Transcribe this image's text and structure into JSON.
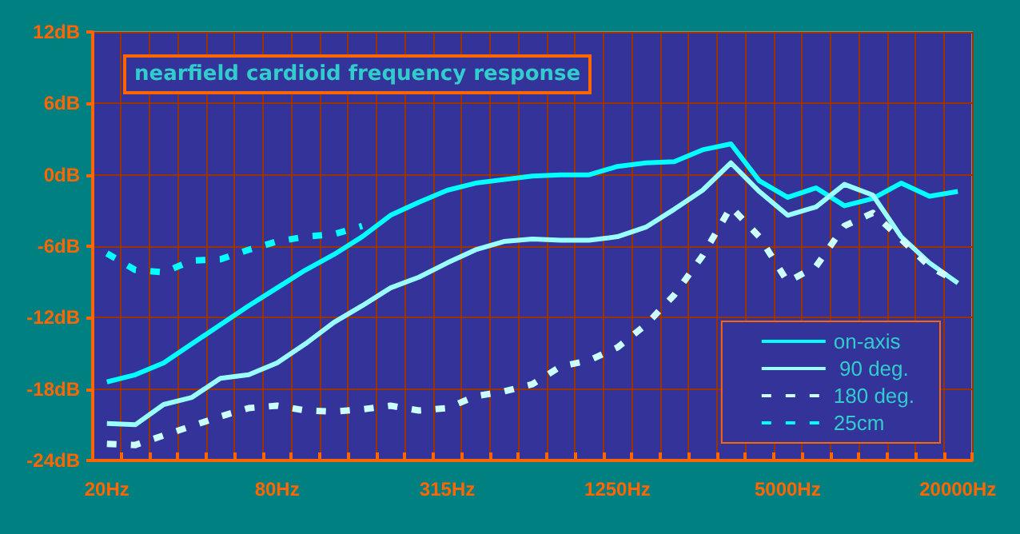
{
  "chart_data": {
    "type": "line",
    "title": "nearfield cardioid frequency response",
    "categories": [
      "20Hz",
      null,
      null,
      null,
      null,
      null,
      "80Hz",
      null,
      null,
      null,
      null,
      null,
      "315Hz",
      null,
      null,
      null,
      null,
      null,
      "1250Hz",
      null,
      null,
      null,
      null,
      null,
      "5000Hz",
      null,
      null,
      null,
      null,
      null,
      "20000Hz"
    ],
    "series": [
      {
        "name": "on-axis",
        "color": "#00ffff",
        "line_style": "solid",
        "values": [
          -17.4,
          -16.8,
          -15.8,
          -14.2,
          -12.6,
          -11.0,
          -9.5,
          -8.0,
          -6.7,
          -5.2,
          -3.4,
          -2.3,
          -1.3,
          -0.7,
          -0.4,
          -0.1,
          0.0,
          0.0,
          0.7,
          1.0,
          1.1,
          2.1,
          2.6,
          -0.5,
          -1.9,
          -1.1,
          -2.6,
          -2.0,
          -0.7,
          -1.8,
          -1.4
        ]
      },
      {
        "name": " 90 deg.",
        "color": "#99ffff",
        "line_style": "solid",
        "values": [
          -20.9,
          -21.0,
          -19.3,
          -18.7,
          -17.1,
          -16.8,
          -15.8,
          -14.2,
          -12.4,
          -11.0,
          -9.5,
          -8.6,
          -7.4,
          -6.3,
          -5.6,
          -5.4,
          -5.5,
          -5.5,
          -5.2,
          -4.4,
          -2.9,
          -1.3,
          1.0,
          -1.4,
          -3.4,
          -2.7,
          -0.8,
          -1.7,
          -5.2,
          -7.4,
          -9.1
        ]
      },
      {
        "name": "180 deg.",
        "color": "#ccffff",
        "line_style": "dashed",
        "values": [
          -22.6,
          -22.7,
          -21.9,
          -21.1,
          -20.3,
          -19.6,
          -19.4,
          -19.8,
          -19.9,
          -19.7,
          -19.4,
          -19.8,
          -19.6,
          -18.6,
          -18.2,
          -17.6,
          -16.1,
          -15.6,
          -14.5,
          -12.6,
          -10.1,
          -6.8,
          -2.7,
          -5.2,
          -9.0,
          -7.7,
          -4.3,
          -3.2,
          -5.4,
          -7.7,
          -9.0
        ]
      },
      {
        "name": "25cm",
        "color": "#00ffff",
        "line_style": "dashed",
        "values": [
          -6.6,
          -8.0,
          -8.2,
          -7.2,
          -7.1,
          -6.3,
          -5.6,
          -5.2,
          -5.0,
          -4.3,
          null,
          null,
          null,
          null,
          null,
          null,
          null,
          null,
          null,
          null,
          null,
          null,
          null,
          null,
          null,
          null,
          null,
          null,
          null,
          null,
          null
        ]
      }
    ],
    "ylim": [
      -24,
      12
    ],
    "yticks": [
      {
        "value": -24,
        "label": "-24dB"
      },
      {
        "value": -18,
        "label": "-18dB"
      },
      {
        "value": -12,
        "label": "-12dB"
      },
      {
        "value": -6,
        "label": "-6dB"
      },
      {
        "value": 0,
        "label": "0dB"
      },
      {
        "value": 6,
        "label": "6dB"
      },
      {
        "value": 12,
        "label": "12dB"
      }
    ],
    "grid": true,
    "legend": "bottom right"
  }
}
